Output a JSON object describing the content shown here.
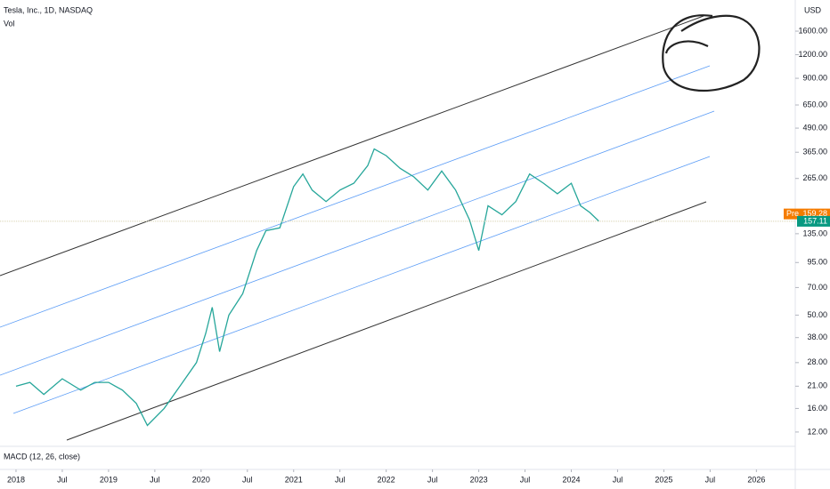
{
  "header": {
    "title": "Tesla, Inc., 1D, NASDAQ",
    "indicator": "Vol",
    "currency": "USD",
    "macd": "MACD (12, 26, close)"
  },
  "price_tags": {
    "pre_label": "Pre",
    "pre": 159.28,
    "last": 157.11
  },
  "chart_data": {
    "type": "line",
    "log_y": true,
    "color": "#26a69a",
    "x": [
      2018.0,
      2018.15,
      2018.3,
      2018.5,
      2018.7,
      2018.85,
      2019.0,
      2019.15,
      2019.3,
      2019.42,
      2019.6,
      2019.8,
      2019.95,
      2020.05,
      2020.12,
      2020.2,
      2020.3,
      2020.45,
      2020.6,
      2020.7,
      2020.85,
      2021.0,
      2021.1,
      2021.2,
      2021.35,
      2021.5,
      2021.65,
      2021.8,
      2021.87,
      2022.0,
      2022.15,
      2022.3,
      2022.45,
      2022.6,
      2022.75,
      2022.9,
      2023.0,
      2023.1,
      2023.25,
      2023.4,
      2023.55,
      2023.7,
      2023.85,
      2024.0,
      2024.1,
      2024.2,
      2024.3
    ],
    "values": [
      21,
      22,
      19,
      23,
      20,
      22,
      22,
      20,
      17,
      13,
      16,
      22,
      28,
      40,
      55,
      32,
      50,
      65,
      110,
      140,
      145,
      240,
      280,
      230,
      200,
      230,
      250,
      310,
      380,
      350,
      300,
      270,
      230,
      290,
      230,
      160,
      110,
      190,
      170,
      200,
      280,
      250,
      220,
      250,
      190,
      175,
      157
    ],
    "xlim": [
      2017.827,
      2026.42
    ],
    "ylim": [
      10.3,
      2340
    ],
    "xticks": [
      2018,
      {
        "value": 2018.5,
        "label": "Jul"
      },
      2019,
      {
        "value": 2019.5,
        "label": "Jul"
      },
      2020,
      {
        "value": 2020.5,
        "label": "Jul"
      },
      2021,
      {
        "value": 2021.5,
        "label": "Jul"
      },
      2022,
      {
        "value": 2022.5,
        "label": "Jul"
      },
      2023,
      {
        "value": 2023.5,
        "label": "Jul"
      },
      2024,
      {
        "value": 2024.5,
        "label": "Jul"
      },
      2025,
      {
        "value": 2025.5,
        "label": "Jul"
      },
      2026
    ],
    "yticks": [
      {
        "value": 1600,
        "label": "1600.00"
      },
      {
        "value": 1200,
        "label": "1200.00"
      },
      {
        "value": 900,
        "label": "900.00"
      },
      {
        "value": 650,
        "label": "650.00"
      },
      {
        "value": 490,
        "label": "490.00"
      },
      {
        "value": 365,
        "label": "365.00"
      },
      {
        "value": 265,
        "label": "265.00"
      },
      {
        "value": 135,
        "label": "135.00"
      },
      {
        "value": 95,
        "label": "95.00"
      },
      {
        "value": 70,
        "label": "70.00"
      },
      {
        "value": 50,
        "label": "50.00"
      },
      {
        "value": 38,
        "label": "38.00"
      },
      {
        "value": 28,
        "label": "28.00"
      },
      {
        "value": 21,
        "label": "21.00"
      },
      {
        "value": 16,
        "label": "16.00"
      },
      {
        "value": 12,
        "label": "12.00"
      }
    ]
  }
}
